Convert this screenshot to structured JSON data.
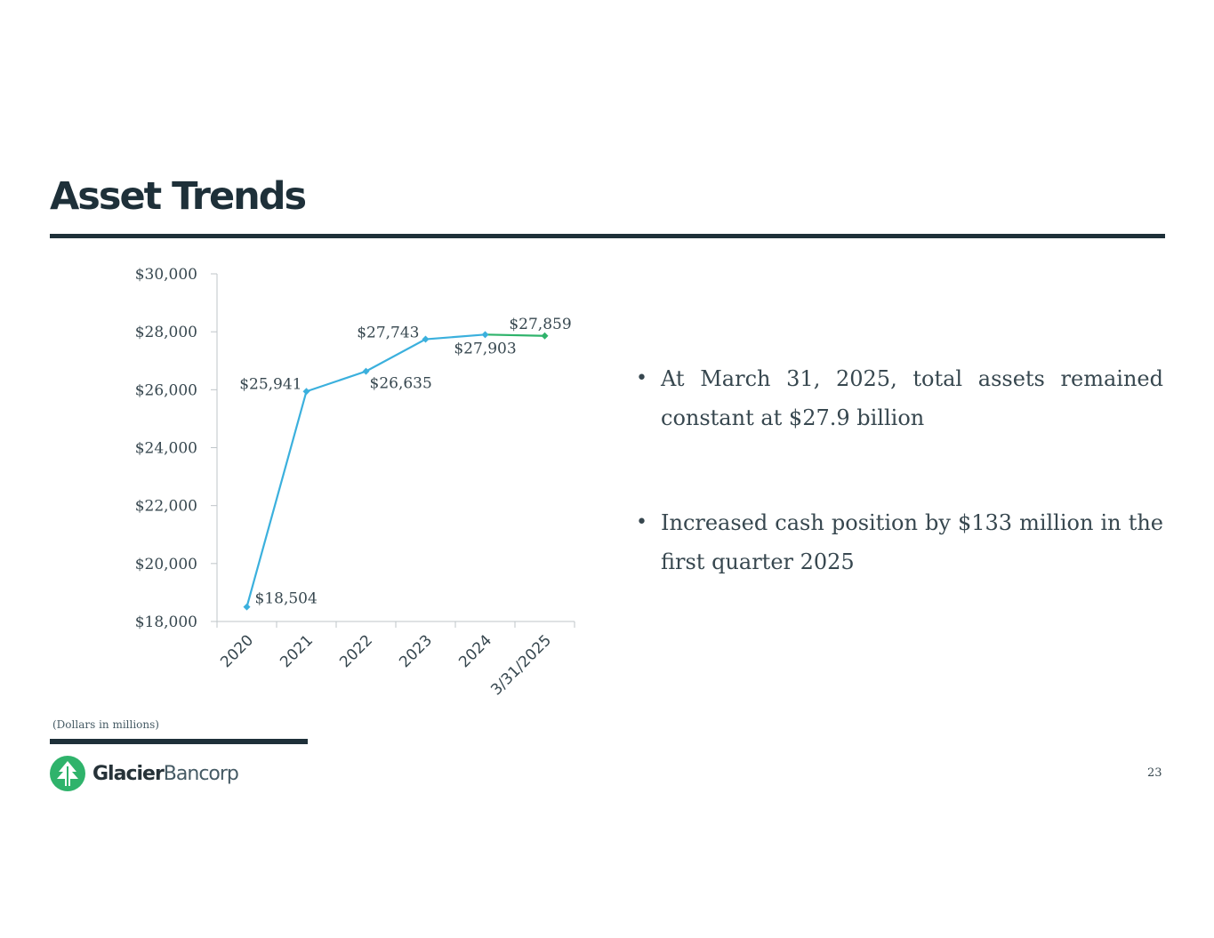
{
  "slide": {
    "title": "Asset Trends",
    "footnote": "(Dollars in millions)",
    "page_number": "23"
  },
  "bullets": [
    {
      "marker": "•",
      "text": "At March 31, 2025, total assets remained constant at $27.9 billion"
    },
    {
      "marker": "•",
      "text": "Increased cash position by $133 million in the first quarter 2025"
    }
  ],
  "logo": {
    "bold": "Glacier",
    "regular": "Bancorp",
    "icon": "tree-icon"
  },
  "colors": {
    "series": "#3bb0dd",
    "last_segment": "#2fb36b",
    "dark": "#1e3039",
    "brand_green": "#2fb36b"
  },
  "chart_data": {
    "type": "line",
    "title": "",
    "xlabel": "",
    "ylabel": "",
    "categories": [
      "2020",
      "2021",
      "2022",
      "2023",
      "2024",
      "3/31/2025"
    ],
    "series": [
      {
        "name": "Total Assets",
        "values": [
          18504,
          25941,
          26635,
          27743,
          27903,
          27859
        ]
      }
    ],
    "data_labels": [
      "$18,504",
      "$25,941",
      "$26,635",
      "$27,743",
      "$27,903",
      "$27,859"
    ],
    "y_ticks": [
      18000,
      20000,
      22000,
      24000,
      26000,
      28000,
      30000
    ],
    "y_tick_labels": [
      "$18,000",
      "$20,000",
      "$22,000",
      "$24,000",
      "$26,000",
      "$28,000",
      "$30,000"
    ],
    "ylim": [
      18000,
      30000
    ],
    "grid": false,
    "legend": "none"
  }
}
